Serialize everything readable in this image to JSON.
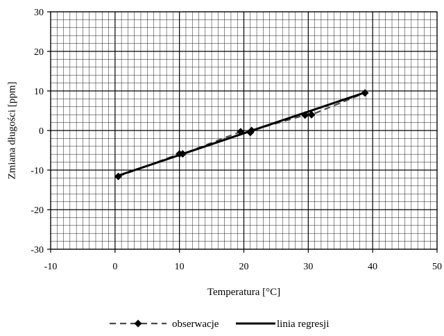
{
  "chart_data": {
    "type": "scatter",
    "xlabel": "Temperatura [°C]",
    "ylabel": "Zmiana długości [ppm]",
    "xlim": [
      -10,
      50
    ],
    "ylim": [
      -30,
      30
    ],
    "x_ticks": [
      -10,
      0,
      10,
      20,
      30,
      40,
      50
    ],
    "y_ticks": [
      -30,
      -20,
      -10,
      0,
      10,
      20,
      30
    ],
    "x_minor_step": 1,
    "y_minor_step": 2,
    "grid": true,
    "legend_position": "bottom-center",
    "series": [
      {
        "name": "obserwacje",
        "type": "line-marker",
        "line_style": "dashed",
        "marker": "diamond",
        "color": "#4a4a4a",
        "points": [
          [
            0.5,
            -11.6
          ],
          [
            10.0,
            -5.9
          ],
          [
            10.5,
            -5.9
          ],
          [
            19.5,
            -0.3
          ],
          [
            21.0,
            -0.5
          ],
          [
            21.2,
            0.0
          ],
          [
            29.5,
            3.9
          ],
          [
            30.5,
            4.0
          ],
          [
            38.8,
            9.5
          ]
        ]
      },
      {
        "name": "linia regresji",
        "type": "line",
        "line_style": "solid",
        "color": "#000000",
        "points": [
          [
            0.5,
            -11.4
          ],
          [
            38.8,
            9.6
          ]
        ]
      }
    ]
  }
}
